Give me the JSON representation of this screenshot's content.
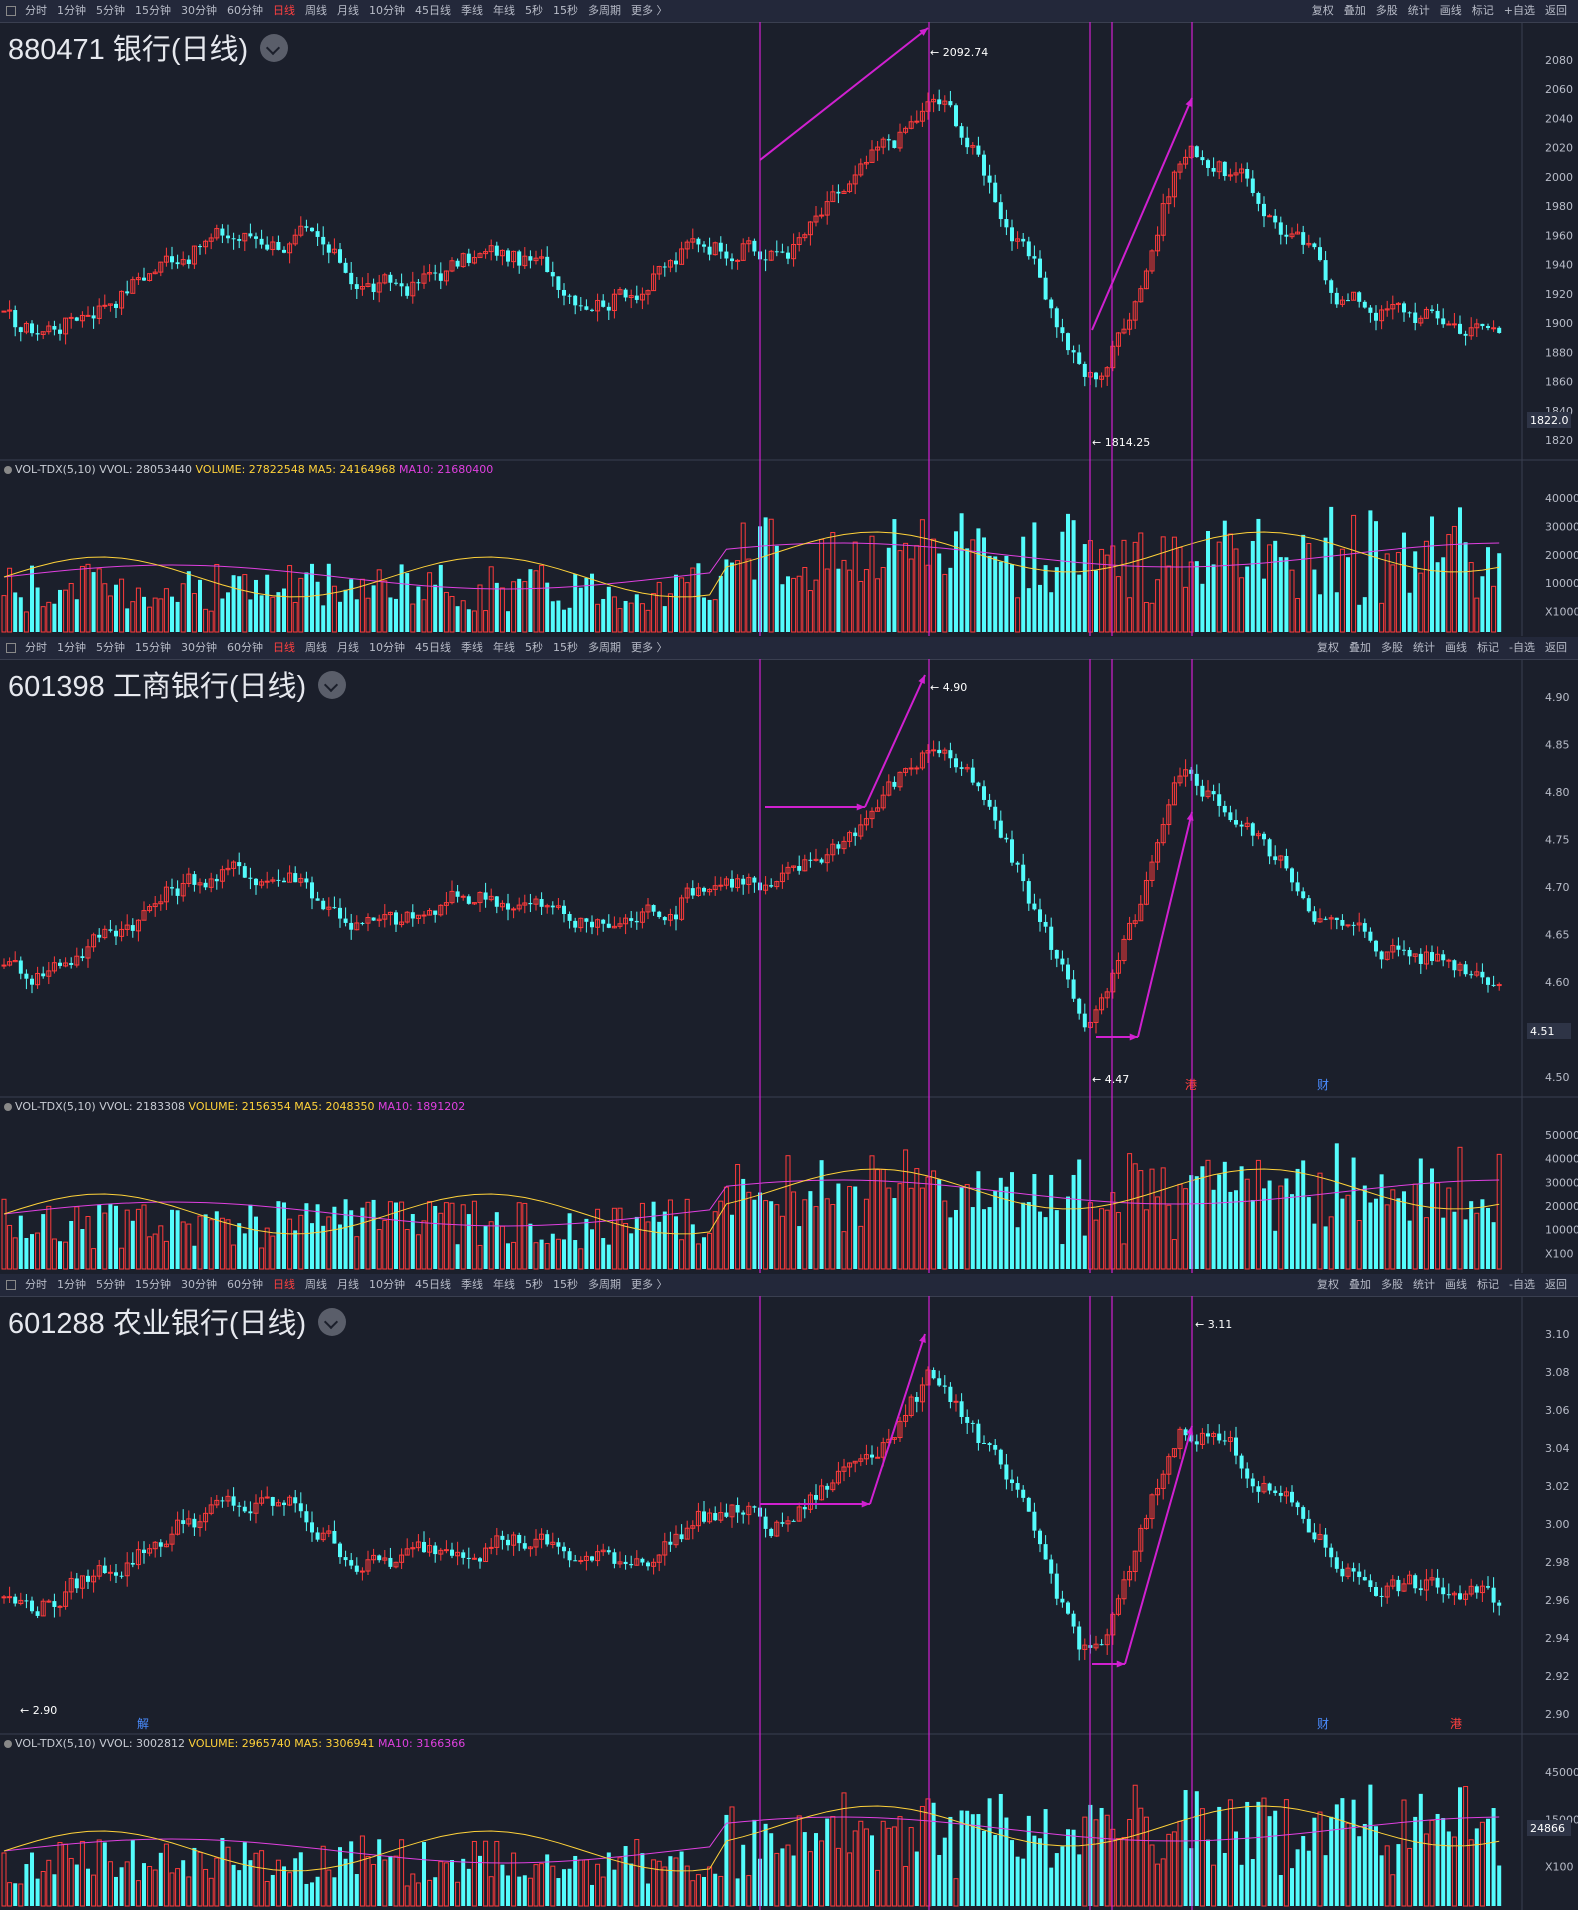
{
  "toolbar": {
    "left": [
      "分时",
      "1分钟",
      "5分钟",
      "15分钟",
      "30分钟",
      "60分钟",
      "日线",
      "周线",
      "月线",
      "10分钟",
      "45日线",
      "季线",
      "年线",
      "5秒",
      "15秒",
      "多周期",
      "更多 〉"
    ],
    "active": "日线",
    "right": [
      "复权",
      "叠加",
      "多股",
      "统计",
      "画线",
      "标记",
      "+自选",
      "返回"
    ],
    "right_alt": [
      "复权",
      "叠加",
      "多股",
      "统计",
      "画线",
      "标记",
      "-自选",
      "返回"
    ]
  },
  "colors": {
    "up": "#ff3b3b",
    "down": "#54fcfc",
    "ma5": "#ffd23a",
    "ma10": "#e040e0",
    "marker": "#d020d0",
    "grid": "#2a2f3d"
  },
  "panels": [
    {
      "title": "880471 银行(日线)",
      "vol_header": {
        "name": "VOL-TDX(5,10)",
        "vvol": "VVOL: 28053440",
        "volume": "VOLUME: 27822548",
        "ma5": "MA5: 24164968",
        "ma10": "MA10: 21680400"
      },
      "price_axis": [
        "2080",
        "2060",
        "2040",
        "2020",
        "2000",
        "1980",
        "1960",
        "1940",
        "1920",
        "1900",
        "1880",
        "1860",
        "1840",
        "1820"
      ],
      "last_price": "1822.0",
      "high_label": "2092.74",
      "low_label": "1814.25",
      "vol_axis": [
        "40000",
        "30000",
        "20000",
        "10000",
        "X1000"
      ]
    },
    {
      "title": "601398 工商银行(日线)",
      "vol_header": {
        "name": "VOL-TDX(5,10)",
        "vvol": "VVOL: 2183308",
        "volume": "VOLUME: 2156354",
        "ma5": "MA5: 2048350",
        "ma10": "MA10: 1891202"
      },
      "price_axis": [
        "4.90",
        "4.85",
        "4.80",
        "4.75",
        "4.70",
        "4.65",
        "4.60",
        "4.55",
        "4.50"
      ],
      "last_price": "4.51",
      "high_label": "4.90",
      "low_label": "4.47",
      "marks": [
        "港",
        "财"
      ],
      "vol_axis": [
        "50000",
        "40000",
        "30000",
        "20000",
        "10000",
        "X100"
      ]
    },
    {
      "title": "601288 农业银行(日线)",
      "vol_header": {
        "name": "VOL-TDX(5,10)",
        "vvol": "VVOL: 3002812",
        "volume": "VOLUME: 2965740",
        "ma5": "MA5: 3306941",
        "ma10": "MA10: 3166366"
      },
      "price_axis": [
        "3.10",
        "3.08",
        "3.06",
        "3.04",
        "3.02",
        "3.00",
        "2.98",
        "2.96",
        "2.94",
        "2.92",
        "2.90"
      ],
      "last_price": "24866",
      "high_label": "3.11",
      "low_label": "2.90",
      "marks": [
        "解",
        "财",
        "港"
      ],
      "vol_axis": [
        "45000",
        "15000",
        "X100"
      ]
    }
  ]
}
